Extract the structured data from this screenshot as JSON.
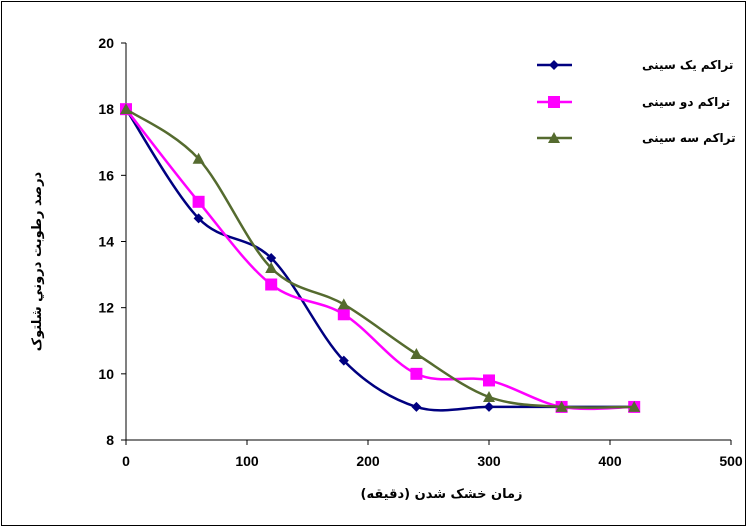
{
  "chart_data": {
    "type": "line",
    "title": "",
    "xlabel": "زمان خشک شدن (دقیقه)",
    "ylabel": "درصد رطوبت دروني شلتوک",
    "xlim": [
      0,
      500
    ],
    "ylim": [
      8,
      20
    ],
    "xticks": [
      0,
      100,
      200,
      300,
      400,
      500
    ],
    "yticks": [
      8,
      10,
      12,
      14,
      16,
      18,
      20
    ],
    "x": [
      0,
      60,
      120,
      180,
      240,
      300,
      360,
      420
    ],
    "grid": false,
    "legend_position": "top-right",
    "series": [
      {
        "name": "تراکم یک سینی",
        "values": [
          18,
          14.7,
          13.5,
          10.4,
          9.0,
          9.0,
          9.0,
          9.0
        ],
        "color": "#000080",
        "marker": "diamond"
      },
      {
        "name": "تراکم دو سینی",
        "values": [
          18,
          15.2,
          12.7,
          11.8,
          10.0,
          9.8,
          9.0,
          9.0
        ],
        "color": "#ff00ff",
        "marker": "square"
      },
      {
        "name": "تراکم سه سینی",
        "values": [
          18,
          16.5,
          13.2,
          12.1,
          10.6,
          9.3,
          9.0,
          9.0
        ],
        "color": "#556b2f",
        "marker": "triangle"
      }
    ]
  }
}
